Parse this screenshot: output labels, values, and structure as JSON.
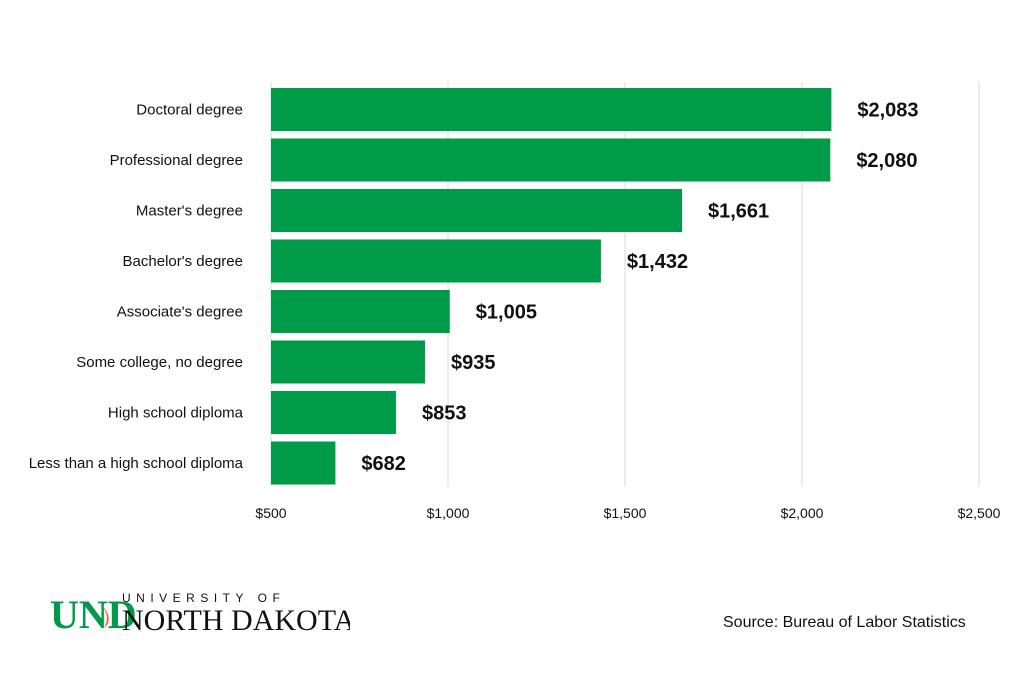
{
  "chart_data": {
    "type": "bar",
    "orientation": "horizontal",
    "categories": [
      "Doctoral degree",
      "Professional degree",
      "Master's degree",
      "Bachelor's degree",
      "Associate's degree",
      "Some college, no degree",
      "High school diploma",
      "Less than a high school diploma"
    ],
    "values": [
      2083,
      2080,
      1661,
      1432,
      1005,
      935,
      853,
      682
    ],
    "value_labels": [
      "$2,083",
      "$2,080",
      "$1,661",
      "$1,432",
      "$1,005",
      "$935",
      "$853",
      "$682"
    ],
    "xlim": [
      500,
      2500
    ],
    "xticks": [
      500,
      1000,
      1500,
      2000,
      2500
    ],
    "xtick_labels": [
      "$500",
      "$1,000",
      "$1,500",
      "$2,000",
      "$2,500"
    ],
    "grid": true,
    "bar_color": "#009b48"
  },
  "logo": {
    "line1": "UNIVERSITY OF",
    "line2": "NORTH DAKOTA",
    "mark": "UND",
    "green": "#009b48",
    "orange": "#f26522"
  },
  "source": "Source: Bureau of Labor Statistics"
}
